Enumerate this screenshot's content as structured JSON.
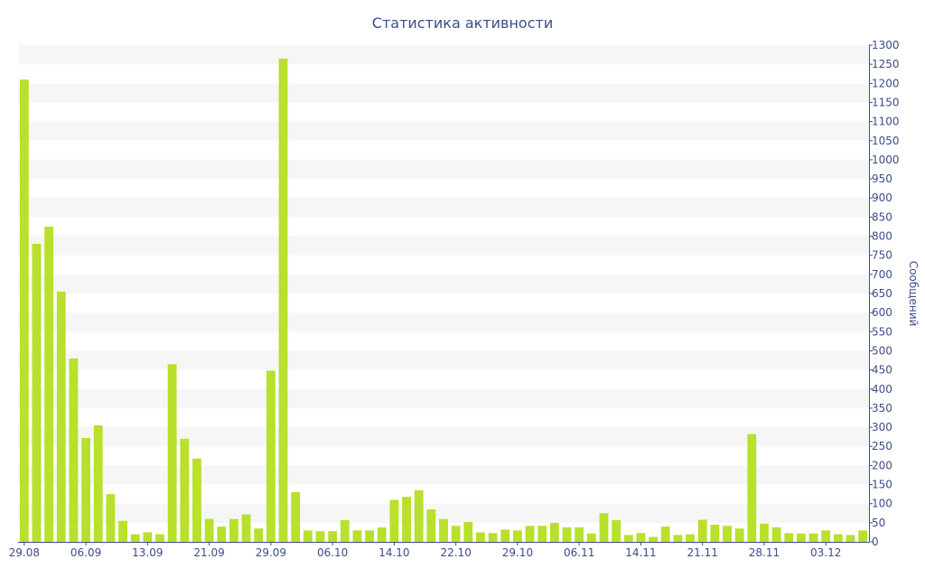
{
  "chart_data": {
    "type": "bar",
    "title": "Статистика активности",
    "ylabel": "Сообщений",
    "xlabel": "",
    "ylim": [
      0,
      1300
    ],
    "y_ticks": [
      0,
      50,
      100,
      150,
      200,
      250,
      300,
      350,
      400,
      450,
      500,
      550,
      600,
      650,
      700,
      750,
      800,
      850,
      900,
      950,
      1000,
      1050,
      1100,
      1150,
      1200,
      1250,
      1300
    ],
    "x_tick_labels": [
      {
        "label": "29.08",
        "index": 0
      },
      {
        "label": "06.09",
        "index": 5
      },
      {
        "label": "13.09",
        "index": 10
      },
      {
        "label": "21.09",
        "index": 15
      },
      {
        "label": "29.09",
        "index": 20
      },
      {
        "label": "06.10",
        "index": 25
      },
      {
        "label": "14.10",
        "index": 30
      },
      {
        "label": "22.10",
        "index": 35
      },
      {
        "label": "29.10",
        "index": 40
      },
      {
        "label": "06.11",
        "index": 45
      },
      {
        "label": "14.11",
        "index": 50
      },
      {
        "label": "21.11",
        "index": 55
      },
      {
        "label": "28.11",
        "index": 60
      },
      {
        "label": "03.12",
        "index": 65
      }
    ],
    "values": [
      1210,
      780,
      825,
      655,
      480,
      272,
      305,
      125,
      55,
      20,
      25,
      20,
      465,
      270,
      218,
      60,
      40,
      60,
      72,
      35,
      448,
      1265,
      130,
      30,
      28,
      28,
      57,
      30,
      30,
      38,
      110,
      118,
      135,
      85,
      60,
      42,
      52,
      25,
      23,
      32,
      30,
      42,
      42,
      50,
      38,
      38,
      22,
      75,
      57,
      18,
      23,
      13,
      40,
      18,
      20,
      58,
      45,
      42,
      35,
      282,
      48,
      38,
      23,
      22,
      22,
      30,
      20,
      18,
      30
    ],
    "bar_color": "#b8e02c",
    "grid": "horizontal-bands",
    "band_color": "#f6f6f6",
    "axis_color": "#3d4c8a",
    "y_axis_position": "right",
    "legend": "none"
  }
}
